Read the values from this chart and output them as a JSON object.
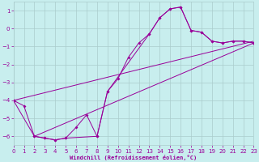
{
  "background_color": "#c8eeee",
  "grid_color": "#aacccc",
  "line_color": "#990099",
  "xlim": [
    0,
    23
  ],
  "ylim": [
    -6.5,
    1.5
  ],
  "yticks": [
    1,
    0,
    -1,
    -2,
    -3,
    -4,
    -5,
    -6
  ],
  "xticks": [
    0,
    1,
    2,
    3,
    4,
    5,
    6,
    7,
    8,
    9,
    10,
    11,
    12,
    13,
    14,
    15,
    16,
    17,
    18,
    19,
    20,
    21,
    22,
    23
  ],
  "xlabel": "Windchill (Refroidissement éolien,°C)",
  "main_x": [
    0,
    1,
    2,
    3,
    4,
    5,
    6,
    7,
    8,
    9,
    10,
    11,
    12,
    13,
    14,
    15,
    16,
    17,
    18,
    19,
    20,
    21,
    22,
    23
  ],
  "main_y": [
    -4.0,
    -4.3,
    -6.0,
    -6.1,
    -6.2,
    -6.1,
    -5.5,
    -4.8,
    -6.0,
    -3.5,
    -2.8,
    -1.6,
    -0.8,
    -0.3,
    0.6,
    1.1,
    1.2,
    -0.1,
    -0.2,
    -0.7,
    -0.8,
    -0.7,
    -0.7,
    -0.8
  ],
  "seg_x": [
    0,
    2,
    3,
    4,
    5,
    8,
    9,
    13,
    14,
    15,
    16,
    17,
    18,
    19,
    20,
    21,
    22,
    23
  ],
  "seg_y": [
    -4.0,
    -6.0,
    -6.1,
    -6.2,
    -6.1,
    -6.0,
    -3.5,
    -0.3,
    0.6,
    1.1,
    1.2,
    -0.1,
    -0.2,
    -0.7,
    -0.8,
    -0.7,
    -0.7,
    -0.8
  ],
  "line1_x": [
    0,
    23
  ],
  "line1_y": [
    -4.0,
    -0.7
  ],
  "line2_x": [
    2,
    23
  ],
  "line2_y": [
    -6.0,
    -0.8
  ]
}
